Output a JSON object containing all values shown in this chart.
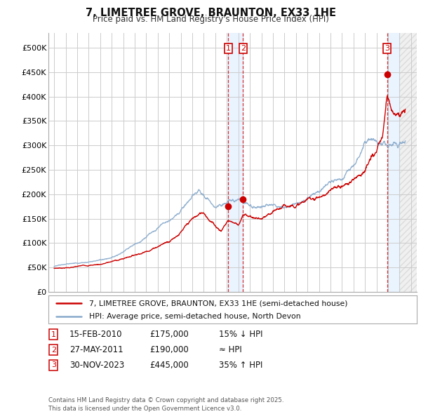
{
  "title": "7, LIMETREE GROVE, BRAUNTON, EX33 1HE",
  "subtitle": "Price paid vs. HM Land Registry's House Price Index (HPI)",
  "legend_line1": "7, LIMETREE GROVE, BRAUNTON, EX33 1HE (semi-detached house)",
  "legend_line2": "HPI: Average price, semi-detached house, North Devon",
  "sale_color": "#cc0000",
  "hpi_color": "#88aacc",
  "sale_points": [
    {
      "num": 1,
      "date_x": 2010.12,
      "price": 175000
    },
    {
      "num": 2,
      "date_x": 2011.4,
      "price": 190000
    },
    {
      "num": 3,
      "date_x": 2023.92,
      "price": 445000
    }
  ],
  "table_data": [
    {
      "num": 1,
      "date": "15-FEB-2010",
      "price": "£175,000",
      "rel": "15% ↓ HPI"
    },
    {
      "num": 2,
      "date": "27-MAY-2011",
      "price": "£190,000",
      "rel": "≈ HPI"
    },
    {
      "num": 3,
      "date": "30-NOV-2023",
      "price": "£445,000",
      "rel": "35% ↑ HPI"
    }
  ],
  "footnote": "Contains HM Land Registry data © Crown copyright and database right 2025.\nThis data is licensed under the Open Government Licence v3.0.",
  "xmin": 1994.5,
  "xmax": 2026.5,
  "ymin": 0,
  "ymax": 530000,
  "yticks": [
    0,
    50000,
    100000,
    150000,
    200000,
    250000,
    300000,
    350000,
    400000,
    450000,
    500000
  ],
  "ytick_labels": [
    "£0",
    "£50K",
    "£100K",
    "£150K",
    "£200K",
    "£250K",
    "£300K",
    "£350K",
    "£400K",
    "£450K",
    "£500K"
  ],
  "background_color": "#ffffff",
  "grid_color": "#cccccc"
}
